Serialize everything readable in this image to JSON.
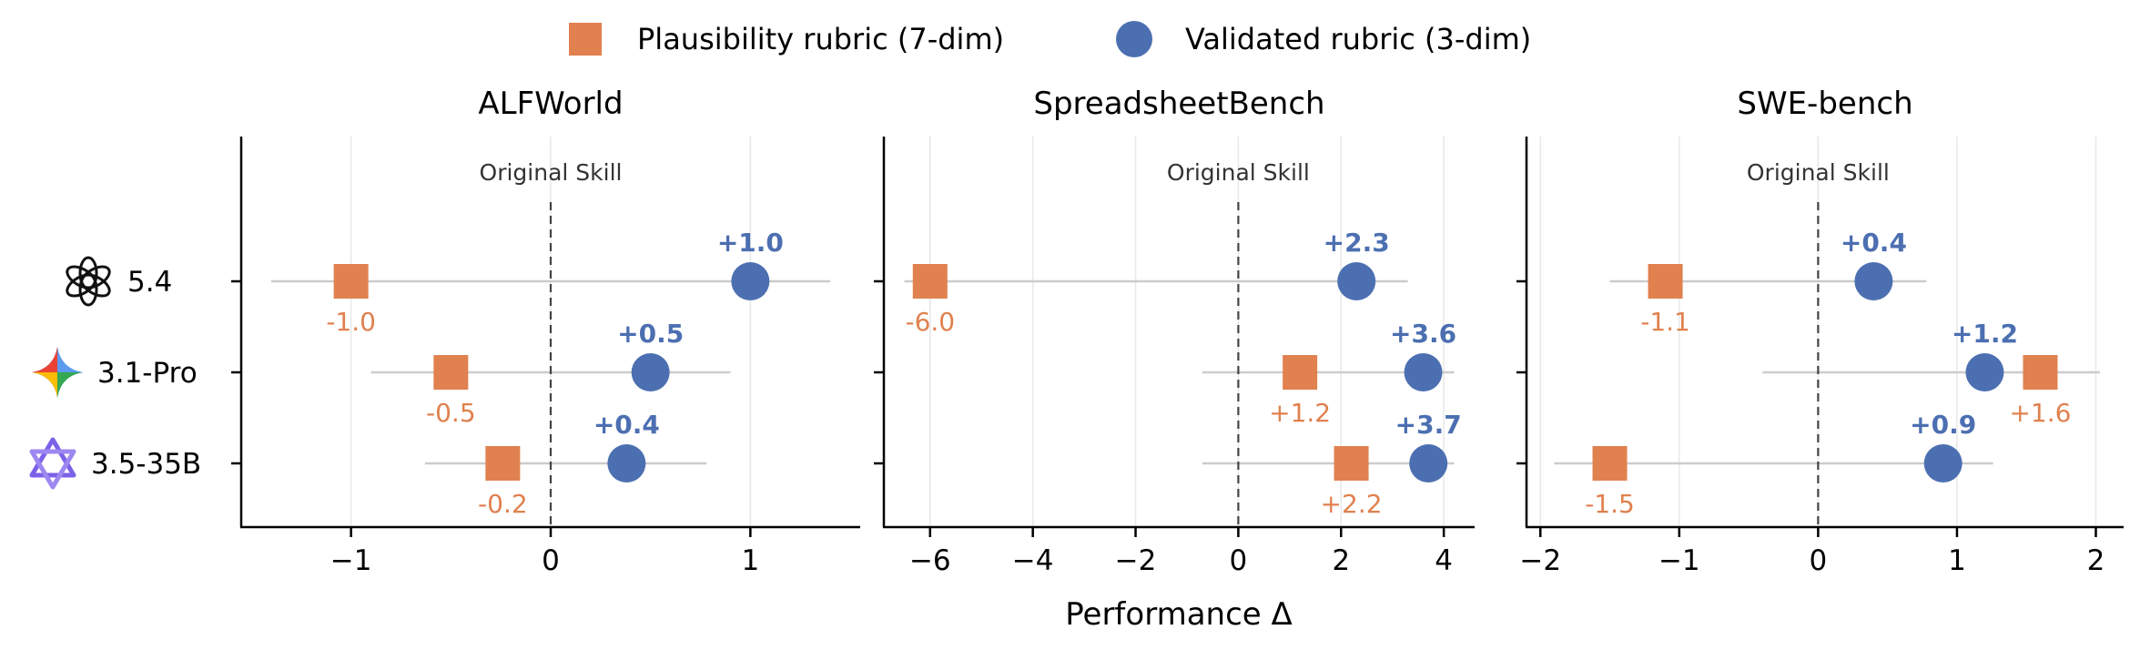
{
  "colors": {
    "plausibility": "#E0814F",
    "validated": "#4C6FB1",
    "axis": "#000000",
    "grid": "#E8E8E8",
    "range_line": "#CCCCCC",
    "zero_line": "#444444",
    "annotation": "#333333"
  },
  "legend": {
    "items": [
      {
        "label": "Plausibility rubric (7-dim)",
        "marker": "square",
        "color_key": "plausibility"
      },
      {
        "label": "Validated rubric (3-dim)",
        "marker": "circle",
        "color_key": "validated"
      }
    ]
  },
  "shared": {
    "xlabel": "Performance Δ",
    "zero_annotation": "Original Skill",
    "models": [
      {
        "label": "5.4",
        "icon": "openai-icon"
      },
      {
        "label": "3.1-Pro",
        "icon": "gemini-icon"
      },
      {
        "label": "3.5-35B",
        "icon": "qwen-icon"
      }
    ]
  },
  "chart_data": [
    {
      "type": "scatter",
      "title": "ALFWorld",
      "xlim": [
        -1.55,
        1.55
      ],
      "xticks": [
        -1,
        0,
        1
      ],
      "xtick_labels": [
        "−1",
        "0",
        "1"
      ],
      "range_lines": [
        [
          -1.4,
          1.4
        ],
        [
          -0.9,
          0.9
        ],
        [
          -0.63,
          0.78
        ]
      ],
      "series": [
        {
          "name": "Plausibility rubric (7-dim)",
          "marker": "square",
          "values": [
            -1.0,
            -0.5,
            -0.24
          ],
          "labels": [
            "-1.0",
            "-0.5",
            "-0.2"
          ],
          "label_pos": "below"
        },
        {
          "name": "Validated rubric (3-dim)",
          "marker": "circle",
          "values": [
            1.0,
            0.5,
            0.38
          ],
          "labels": [
            "+1.0",
            "+0.5",
            "+0.4"
          ],
          "label_pos": "above"
        }
      ]
    },
    {
      "type": "scatter",
      "title": "SpreadsheetBench",
      "xlim": [
        -6.9,
        4.6
      ],
      "xticks": [
        -6,
        -4,
        -2,
        0,
        2,
        4
      ],
      "xtick_labels": [
        "−6",
        "−4",
        "−2",
        "0",
        "2",
        "4"
      ],
      "range_lines": [
        [
          -6.5,
          3.3
        ],
        [
          -0.7,
          4.2
        ],
        [
          -0.7,
          4.2
        ]
      ],
      "series": [
        {
          "name": "Plausibility rubric (7-dim)",
          "marker": "square",
          "values": [
            -6.0,
            1.2,
            2.2
          ],
          "labels": [
            "-6.0",
            "+1.2",
            "+2.2"
          ],
          "label_pos": "below"
        },
        {
          "name": "Validated rubric (3-dim)",
          "marker": "circle",
          "values": [
            2.3,
            3.6,
            3.7
          ],
          "labels": [
            "+2.3",
            "+3.6",
            "+3.7"
          ],
          "label_pos": "above"
        }
      ]
    },
    {
      "type": "scatter",
      "title": "SWE-bench",
      "xlim": [
        -2.1,
        2.2
      ],
      "xticks": [
        -2,
        -1,
        0,
        1,
        2
      ],
      "xtick_labels": [
        "−2",
        "−1",
        "0",
        "1",
        "2"
      ],
      "range_lines": [
        [
          -1.5,
          0.78
        ],
        [
          -0.4,
          2.03
        ],
        [
          -1.9,
          1.26
        ]
      ],
      "series": [
        {
          "name": "Plausibility rubric (7-dim)",
          "marker": "square",
          "values": [
            -1.1,
            1.6,
            -1.5
          ],
          "labels": [
            "-1.1",
            "+1.6",
            "-1.5"
          ],
          "label_pos": "below"
        },
        {
          "name": "Validated rubric (3-dim)",
          "marker": "circle",
          "values": [
            0.4,
            1.2,
            0.9
          ],
          "labels": [
            "+0.4",
            "+1.2",
            "+0.9"
          ],
          "label_pos": "above"
        }
      ]
    }
  ]
}
